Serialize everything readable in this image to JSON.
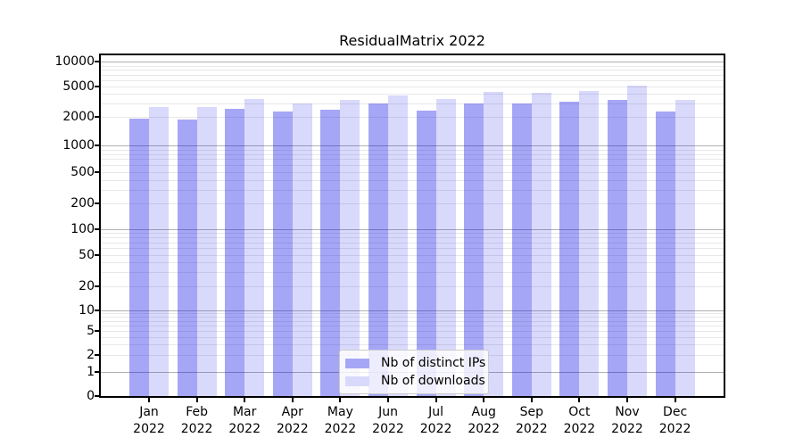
{
  "title": "ResidualMatrix 2022",
  "legend": {
    "items": [
      {
        "label": "Nb of distinct IPs"
      },
      {
        "label": "Nb of downloads"
      }
    ]
  },
  "colors": {
    "ips_fill": "rgba(0,0,230,0.35)",
    "downloads_fill": "rgba(0,0,230,0.15)",
    "ips_solid": "#a6a6f6",
    "downloads_solid": "#d9d9fb",
    "grid_major": "#b1b1b1",
    "grid_minor": "#e8e8e8"
  },
  "chart_data": {
    "type": "bar",
    "title": "ResidualMatrix 2022",
    "categories": [
      "Jan 2022",
      "Feb 2022",
      "Mar 2022",
      "Apr 2022",
      "May 2022",
      "Jun 2022",
      "Jul 2022",
      "Aug 2022",
      "Sep 2022",
      "Oct 2022",
      "Nov 2022",
      "Dec 2022"
    ],
    "series": [
      {
        "name": "Nb of distinct IPs",
        "color": "#a6a6f6",
        "values": [
          1900,
          1850,
          2550,
          2350,
          2450,
          3000,
          2400,
          3000,
          2950,
          3100,
          3300,
          2300
        ]
      },
      {
        "name": "Nb of downloads",
        "color": "#d9d9fb",
        "values": [
          2650,
          2700,
          3400,
          3000,
          3300,
          3850,
          3400,
          4300,
          4150,
          4400,
          5100,
          3300
        ]
      }
    ],
    "xlabel": "",
    "ylabel": "",
    "yscale": "symlog",
    "yticks": [
      0,
      1,
      2,
      5,
      10,
      20,
      50,
      100,
      200,
      500,
      1000,
      2000,
      5000,
      10000
    ],
    "ylim": [
      0,
      13000
    ],
    "grid": "both",
    "legend_position": "lower center"
  }
}
